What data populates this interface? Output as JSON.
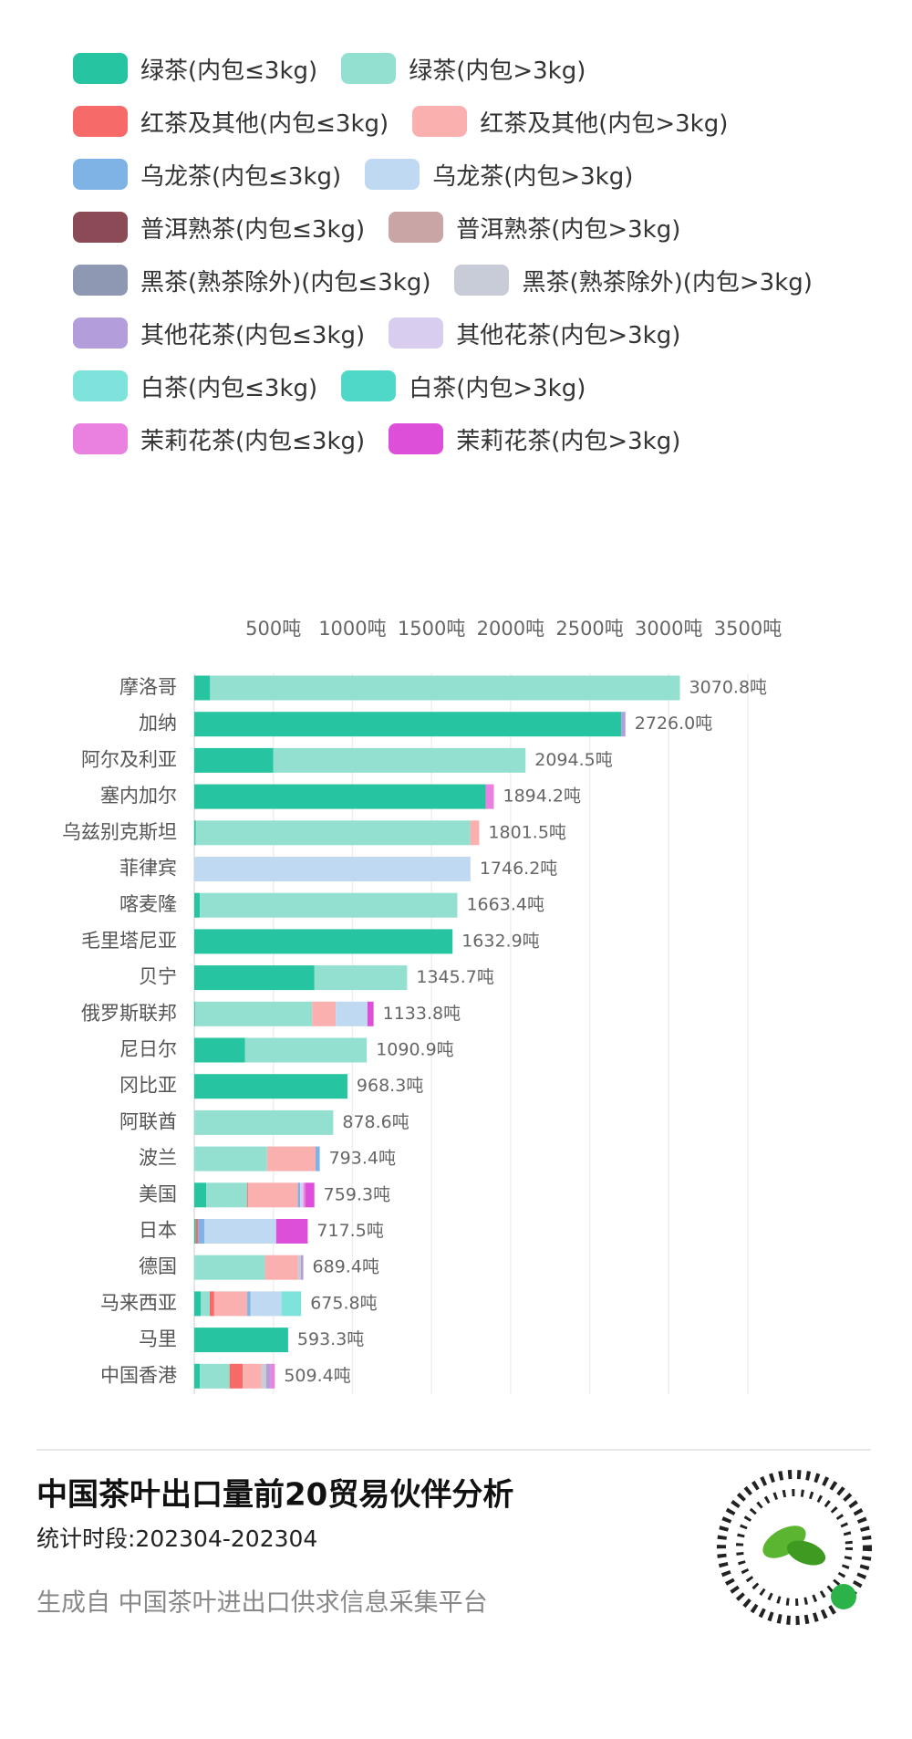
{
  "chart_data": {
    "type": "bar",
    "orientation": "horizontal",
    "stacked": true,
    "title": "中国茶叶出口量前20贸易伙伴分析",
    "subtitle": "统计时段:202304-202304",
    "source": "生成自 中国茶叶进出口供求信息采集平台",
    "categories": [
      "摩洛哥",
      "加纳",
      "阿尔及利亚",
      "塞内加尔",
      "乌兹别克斯坦",
      "菲律宾",
      "喀麦隆",
      "毛里塔尼亚",
      "贝宁",
      "俄罗斯联邦",
      "尼日尔",
      "冈比亚",
      "阿联酋",
      "波兰",
      "美国",
      "日本",
      "德国",
      "马来西亚",
      "马里",
      "中国香港"
    ],
    "totals": [
      3070.8,
      2726.0,
      2094.5,
      1894.2,
      1801.5,
      1746.2,
      1663.4,
      1632.9,
      1345.7,
      1133.8,
      1090.9,
      968.3,
      878.6,
      793.4,
      759.3,
      717.5,
      689.4,
      675.8,
      593.3,
      509.4
    ],
    "total_labels": [
      "3070.8吨",
      "2726.0吨",
      "2094.5吨",
      "1894.2吨",
      "1801.5吨",
      "1746.2吨",
      "1663.4吨",
      "1632.9吨",
      "1345.7吨",
      "1133.8吨",
      "1090.9吨",
      "968.3吨",
      "878.6吨",
      "793.4吨",
      "759.3吨",
      "717.5吨",
      "689.4吨",
      "675.8吨",
      "593.3吨",
      "509.4吨"
    ],
    "xlim": [
      0,
      3500
    ],
    "xticks": [
      {
        "value": 500,
        "label": "500吨"
      },
      {
        "value": 1000,
        "label": "1000吨"
      },
      {
        "value": 1500,
        "label": "1500吨"
      },
      {
        "value": 2000,
        "label": "2000吨"
      },
      {
        "value": 2500,
        "label": "2500吨"
      },
      {
        "value": 3000,
        "label": "3000吨"
      },
      {
        "value": 3500,
        "label": "3500吨"
      }
    ],
    "grid": true,
    "series": [
      {
        "name": "绿茶(内包≤3kg)",
        "color": "#26c4a0",
        "values": [
          100,
          2700,
          500,
          1842,
          10,
          0,
          35,
          1632.9,
          760,
          5,
          320,
          968.3,
          0,
          0,
          75,
          10,
          0,
          42,
          593.3,
          35
        ]
      },
      {
        "name": "绿茶(内包>3kg)",
        "color": "#93e0d0",
        "values": [
          2970.8,
          0,
          1594.5,
          0,
          1735,
          0,
          1628.4,
          0,
          585.7,
          740,
          770.9,
          0,
          878.6,
          460,
          260,
          0,
          447,
          56,
          0,
          188
        ]
      },
      {
        "name": "红茶及其他(内包≤3kg)",
        "color": "#f76a6a",
        "values": [
          0,
          0,
          0,
          0,
          0,
          0,
          0,
          0,
          0,
          0,
          0,
          0,
          0,
          0,
          5,
          15,
          0,
          28,
          0,
          84
        ]
      },
      {
        "name": "红茶及其他(内包>3kg)",
        "color": "#fbb0b0",
        "values": [
          0,
          0,
          0,
          0,
          56.5,
          0,
          0,
          0,
          0,
          150,
          0,
          0,
          0,
          307,
          315,
          0,
          209,
          209,
          0,
          119
        ]
      },
      {
        "name": "乌龙茶(内包≤3kg)",
        "color": "#7fb2e5",
        "values": [
          0,
          0,
          0,
          0,
          0,
          0,
          0,
          0,
          0,
          0,
          0,
          0,
          0,
          26.4,
          15,
          40,
          0,
          21,
          0,
          0
        ]
      },
      {
        "name": "乌龙茶(内包>3kg)",
        "color": "#c0d9f2",
        "values": [
          0,
          0,
          0,
          0,
          0,
          1746.2,
          0,
          0,
          0,
          200,
          0,
          0,
          0,
          0,
          0,
          453,
          0,
          195,
          0,
          0
        ]
      },
      {
        "name": "普洱熟茶(内包≤3kg)",
        "color": "#8b4a55",
        "values": [
          0,
          0,
          0,
          0,
          0,
          0,
          0,
          0,
          0,
          0,
          0,
          0,
          0,
          0,
          0,
          0,
          0,
          0,
          0,
          0
        ]
      },
      {
        "name": "普洱熟茶(内包>3kg)",
        "color": "#c9a5a5",
        "values": [
          0,
          0,
          0,
          0,
          0,
          0,
          0,
          0,
          0,
          0,
          0,
          0,
          0,
          0,
          0,
          0,
          0,
          0,
          0,
          0
        ]
      },
      {
        "name": "黑茶(熟茶除外)(内包≤3kg)",
        "color": "#8e98b3",
        "values": [
          0,
          0,
          0,
          0,
          0,
          0,
          0,
          0,
          0,
          0,
          0,
          0,
          0,
          0,
          0,
          0,
          0,
          0,
          0,
          0
        ]
      },
      {
        "name": "黑茶(熟茶除外)(内包>3kg)",
        "color": "#c8ccd8",
        "values": [
          0,
          0,
          0,
          0,
          0,
          0,
          0,
          0,
          0,
          0,
          0,
          0,
          0,
          0,
          0,
          0,
          18.4,
          0,
          0,
          28
        ]
      },
      {
        "name": "其他花茶(内包≤3kg)",
        "color": "#b39ddb",
        "values": [
          0,
          26,
          0,
          0,
          0,
          0,
          0,
          0,
          0,
          0,
          0,
          0,
          0,
          0,
          0,
          0,
          15,
          0,
          0,
          28
        ]
      },
      {
        "name": "其他花茶(内包>3kg)",
        "color": "#d9cdef",
        "values": [
          0,
          0,
          0,
          0,
          0,
          0,
          0,
          0,
          0,
          0,
          0,
          0,
          0,
          0,
          20,
          0,
          0,
          0,
          0,
          0
        ]
      },
      {
        "name": "白茶(内包≤3kg)",
        "color": "#7ee3db",
        "values": [
          0,
          0,
          0,
          0,
          0,
          0,
          0,
          0,
          0,
          0,
          0,
          0,
          0,
          0,
          0,
          0,
          0,
          124.8,
          0,
          0
        ]
      },
      {
        "name": "白茶(内包>3kg)",
        "color": "#4fd8c8",
        "values": [
          0,
          0,
          0,
          0,
          0,
          0,
          0,
          0,
          0,
          0,
          0,
          0,
          0,
          0,
          0,
          0,
          0,
          0,
          0,
          0
        ]
      },
      {
        "name": "茉莉花茶(内包≤3kg)",
        "color": "#ea80e0",
        "values": [
          0,
          0,
          0,
          52.2,
          0,
          0,
          0,
          0,
          0,
          0,
          0,
          0,
          0,
          0,
          13.3,
          0,
          0,
          0,
          0,
          27.4
        ]
      },
      {
        "name": "茉莉花茶(内包>3kg)",
        "color": "#dd4fd8",
        "values": [
          0,
          0,
          0,
          0,
          0,
          0,
          0,
          0,
          0,
          38.8,
          0,
          0,
          0,
          0,
          56,
          199.5,
          0,
          0,
          0,
          0
        ]
      }
    ]
  }
}
